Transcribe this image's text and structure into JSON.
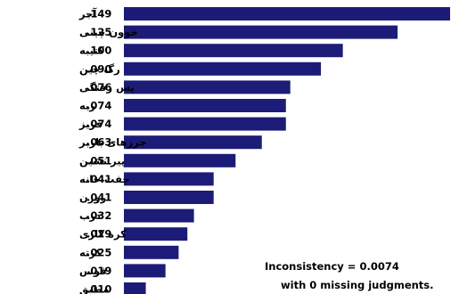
{
  "chart_data": {
    "type": "bar",
    "orientation": "horizontal",
    "categories": [
      "آجر",
      "خوون چینی",
      "کتیبه",
      "رگ چین",
      "پس رفتگی",
      "ربه",
      "فریز",
      "جرزهای باربر",
      "پیر نشین",
      "جفت خانه",
      "روزن",
      "درب",
      "کره کاری",
      "کرته",
      "قوس",
      "مطبق"
    ],
    "values": [
      0.149,
      0.125,
      0.1,
      0.09,
      0.076,
      0.074,
      0.074,
      0.063,
      0.051,
      0.041,
      0.041,
      0.032,
      0.029,
      0.025,
      0.019,
      0.01
    ],
    "value_labels": [
      ".149",
      ".125",
      ".100",
      ".090",
      ".076",
      ".074",
      ".074",
      ".063",
      ".051",
      ".041",
      ".041",
      ".032",
      ".029",
      ".025",
      ".019",
      ".010"
    ],
    "bar_color": "#1c1c78",
    "xlim": [
      0,
      0.149
    ],
    "grid": false
  },
  "notes": {
    "inconsistency": "Inconsistency = 0.0074",
    "missing": "with 0  missing judgments."
  }
}
